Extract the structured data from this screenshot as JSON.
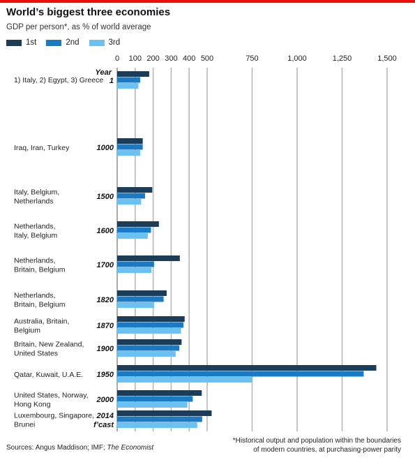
{
  "title": "World’s biggest three economies",
  "subtitle": "GDP per person*, as % of world average",
  "legend": [
    {
      "label": "1st",
      "color": "#1b3d57"
    },
    {
      "label": "2nd",
      "color": "#1a7bc4"
    },
    {
      "label": "3rd",
      "color": "#6bc2f2"
    }
  ],
  "chart_data": {
    "type": "bar",
    "orientation": "horizontal",
    "x_ticks": [
      "0",
      "100",
      "200",
      "300",
      "400",
      "500",
      "750",
      "1,000",
      "1,250",
      "1,500"
    ],
    "x_tick_values": [
      0,
      100,
      200,
      300,
      400,
      500,
      750,
      1000,
      1250,
      1500
    ],
    "xlim": [
      0,
      1500
    ],
    "grid": true,
    "year_header": "Year",
    "series": [
      {
        "name": "1st",
        "color": "#1b3d57"
      },
      {
        "name": "2nd",
        "color": "#1a7bc4"
      },
      {
        "name": "3rd",
        "color": "#6bc2f2"
      }
    ],
    "rows": [
      {
        "year": "1",
        "countries": "1) Italy, 2) Egypt, 3) Greece",
        "values": [
          178,
          128,
          118
        ]
      },
      {
        "year": "1000",
        "countries": "Iraq, Iran, Turkey",
        "values": [
          142,
          142,
          128
        ]
      },
      {
        "year": "1500",
        "countries": "Italy, Belgium, Netherlands",
        "values": [
          195,
          155,
          133
        ]
      },
      {
        "year": "1600",
        "countries": "Netherlands, Italy, Belgium",
        "values": [
          232,
          188,
          170
        ]
      },
      {
        "year": "1700",
        "countries": "Netherlands, Britain, Belgium",
        "values": [
          348,
          205,
          190
        ]
      },
      {
        "year": "1820",
        "countries": "Netherlands, Britain, Belgium",
        "values": [
          275,
          258,
          205
        ]
      },
      {
        "year": "1870",
        "countries": "Australia, Britain, Belgium",
        "values": [
          375,
          368,
          355
        ]
      },
      {
        "year": "1900",
        "countries": "Britain, New Zealand, United States",
        "values": [
          358,
          345,
          325
        ]
      },
      {
        "year": "1950",
        "countries": "Qatar, Kuwait, U.A.E.",
        "values": [
          1440,
          1370,
          750
        ]
      },
      {
        "year": "2000",
        "countries": "United States, Norway, Hong Kong",
        "values": [
          470,
          420,
          390
        ]
      },
      {
        "year": "2014",
        "countries": "Luxembourg, Singapore, Brunei",
        "values": [
          525,
          472,
          445
        ]
      }
    ]
  },
  "row_labels": [
    [
      "1) Italy, 2) Egypt, 3) Greece"
    ],
    [
      "Iraq, Iran, Turkey"
    ],
    [
      "Italy, Belgium,",
      "Netherlands"
    ],
    [
      "Netherlands,",
      "Italy, Belgium"
    ],
    [
      "Netherlands,",
      "Britain, Belgium"
    ],
    [
      "Netherlands,",
      "Britain, Belgium"
    ],
    [
      "Australia, Britain,",
      "Belgium"
    ],
    [
      "Britain, New Zealand,",
      "United States"
    ],
    [
      "Qatar, Kuwait, U.A.E."
    ],
    [
      "United States, Norway,",
      "Hong Kong"
    ],
    [
      "Luxembourg, Singapore,",
      "Brunei"
    ]
  ],
  "year_labels": [
    "1",
    "1000",
    "1500",
    "1600",
    "1700",
    "1820",
    "1870",
    "1900",
    "1950",
    "2000",
    "2014"
  ],
  "forecast_note": "f’cast",
  "footer": {
    "sources_prefix": "Sources: Angus Maddison; IMF; ",
    "sources_italic": "The Economist",
    "note_line1": "*Historical output and population within the boundaries",
    "note_line2": "of modern countries, at purchasing-power parity"
  }
}
